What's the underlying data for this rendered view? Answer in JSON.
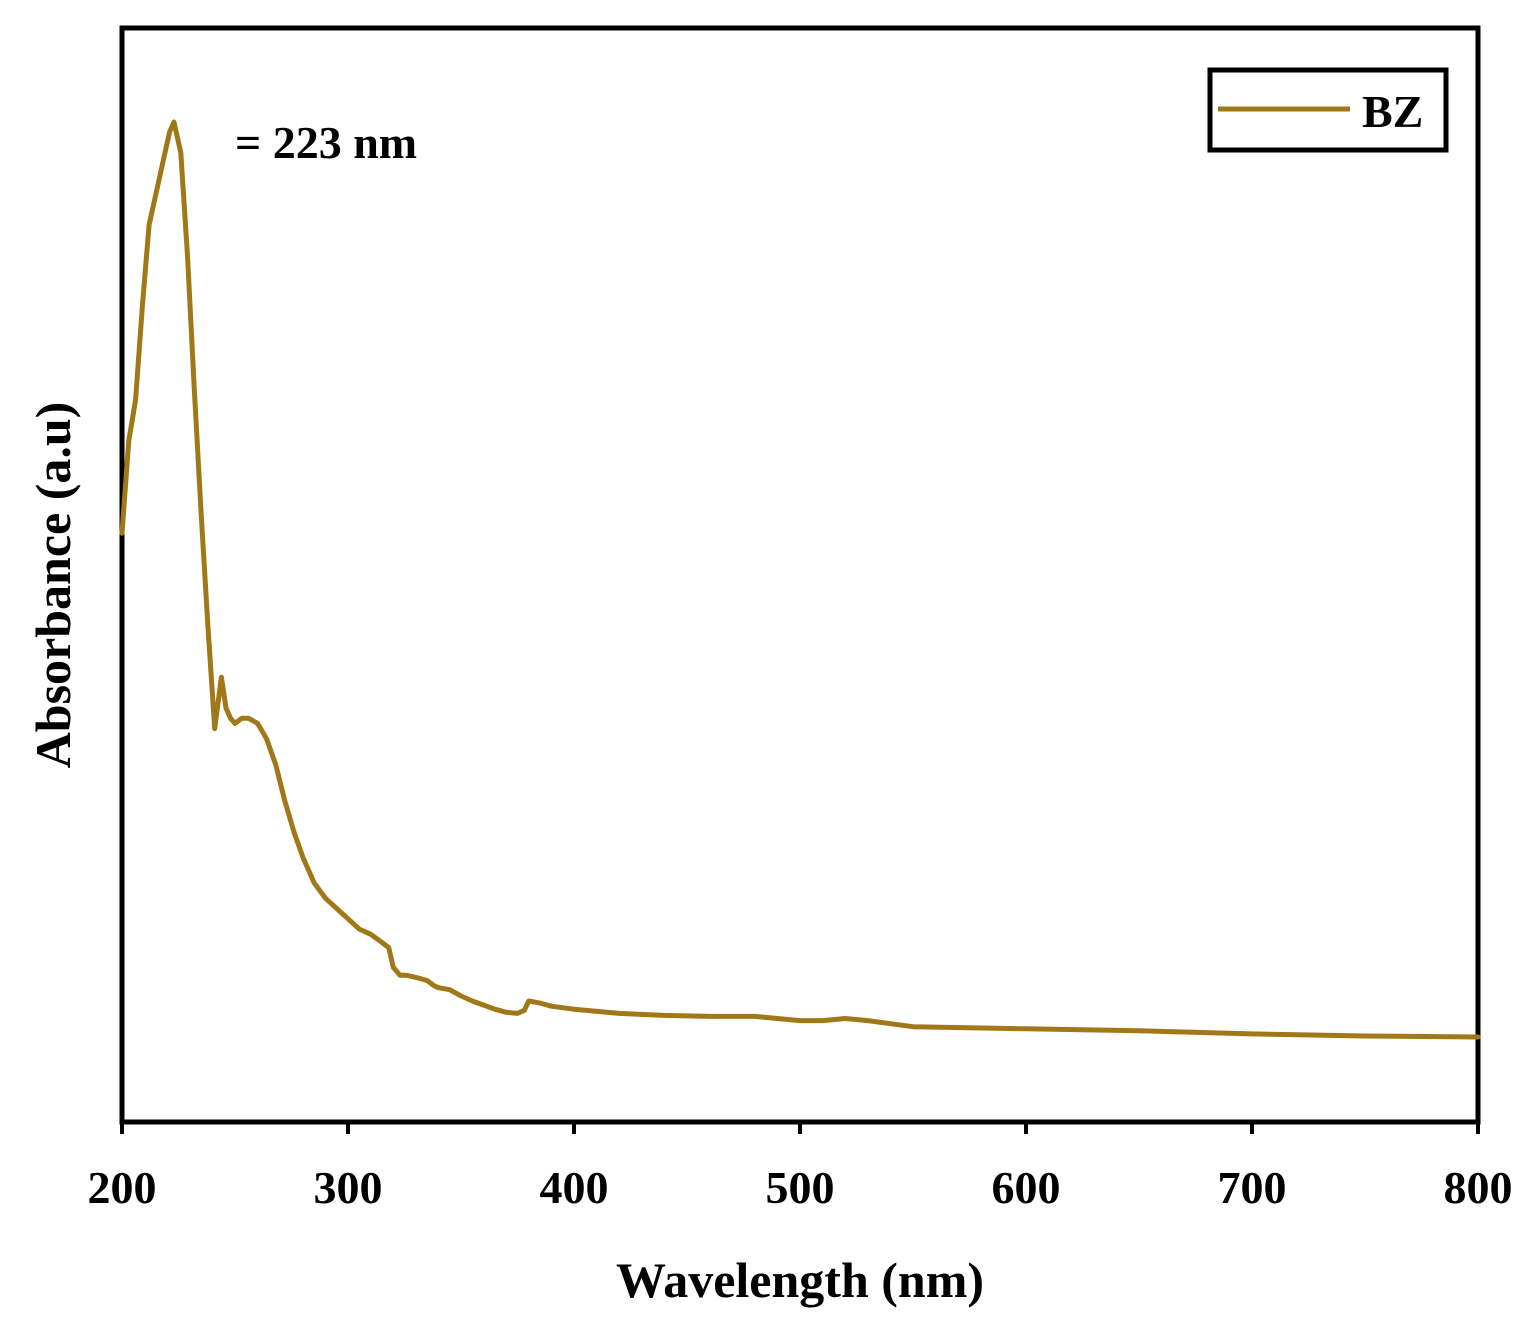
{
  "chart_data": {
    "type": "line",
    "title": "",
    "xlabel": "Wavelength (nm)",
    "ylabel": "Absorbance (a.u)",
    "xlim": [
      200,
      800
    ],
    "ylim": [
      0,
      1.0
    ],
    "x_ticks": [
      200,
      300,
      400,
      500,
      600,
      700,
      800
    ],
    "y_ticks_shown": false,
    "grid": false,
    "legend_position": "top-right",
    "annotation": "= 223 nm",
    "series": [
      {
        "name": "BZ",
        "color": "#A07818",
        "x": [
          200,
          203,
          206,
          209,
          212,
          215,
          218,
          221,
          223,
          226,
          229,
          232,
          235,
          238,
          241,
          244,
          246,
          248,
          250,
          253,
          256,
          260,
          264,
          268,
          272,
          276,
          280,
          285,
          290,
          295,
          300,
          305,
          310,
          315,
          318,
          320,
          323,
          326,
          330,
          335,
          338,
          340,
          345,
          350,
          355,
          360,
          365,
          370,
          375,
          378,
          380,
          385,
          390,
          400,
          420,
          440,
          460,
          480,
          500,
          510,
          520,
          530,
          550,
          600,
          650,
          700,
          750,
          800
        ],
        "y": [
          0.6,
          0.69,
          0.73,
          0.82,
          0.9,
          0.93,
          0.96,
          0.99,
          1.0,
          0.97,
          0.87,
          0.74,
          0.62,
          0.51,
          0.41,
          0.46,
          0.43,
          0.42,
          0.415,
          0.42,
          0.42,
          0.415,
          0.4,
          0.375,
          0.34,
          0.31,
          0.285,
          0.26,
          0.245,
          0.235,
          0.225,
          0.215,
          0.21,
          0.202,
          0.197,
          0.178,
          0.17,
          0.17,
          0.168,
          0.165,
          0.16,
          0.158,
          0.156,
          0.15,
          0.145,
          0.141,
          0.137,
          0.134,
          0.133,
          0.136,
          0.145,
          0.143,
          0.14,
          0.137,
          0.133,
          0.131,
          0.13,
          0.13,
          0.126,
          0.126,
          0.128,
          0.126,
          0.12,
          0.118,
          0.116,
          0.113,
          0.111,
          0.11
        ]
      }
    ]
  }
}
